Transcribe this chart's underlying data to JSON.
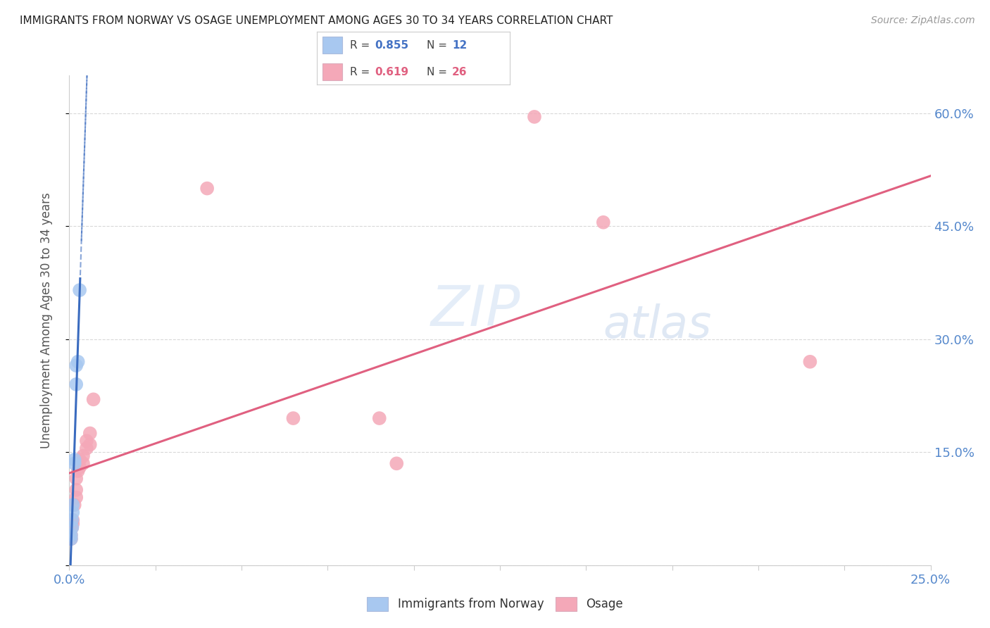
{
  "title": "IMMIGRANTS FROM NORWAY VS OSAGE UNEMPLOYMENT AMONG AGES 30 TO 34 YEARS CORRELATION CHART",
  "source": "Source: ZipAtlas.com",
  "ylabel": "Unemployment Among Ages 30 to 34 years",
  "xlim": [
    0.0,
    0.25
  ],
  "ylim": [
    0.0,
    0.65
  ],
  "xticks": [
    0.0,
    0.025,
    0.05,
    0.075,
    0.1,
    0.125,
    0.15,
    0.175,
    0.2,
    0.225,
    0.25
  ],
  "yticks_right": [
    0.0,
    0.15,
    0.3,
    0.45,
    0.6
  ],
  "norway_points": [
    [
      0.0005,
      0.035
    ],
    [
      0.0005,
      0.04
    ],
    [
      0.0008,
      0.05
    ],
    [
      0.0008,
      0.06
    ],
    [
      0.001,
      0.07
    ],
    [
      0.001,
      0.08
    ],
    [
      0.0015,
      0.135
    ],
    [
      0.0015,
      0.14
    ],
    [
      0.002,
      0.24
    ],
    [
      0.002,
      0.265
    ],
    [
      0.0025,
      0.27
    ],
    [
      0.003,
      0.365
    ]
  ],
  "osage_points": [
    [
      0.0005,
      0.035
    ],
    [
      0.0005,
      0.04
    ],
    [
      0.0008,
      0.05
    ],
    [
      0.001,
      0.055
    ],
    [
      0.001,
      0.06
    ],
    [
      0.0015,
      0.08
    ],
    [
      0.002,
      0.09
    ],
    [
      0.002,
      0.1
    ],
    [
      0.002,
      0.115
    ],
    [
      0.0025,
      0.125
    ],
    [
      0.003,
      0.13
    ],
    [
      0.003,
      0.14
    ],
    [
      0.004,
      0.135
    ],
    [
      0.004,
      0.145
    ],
    [
      0.005,
      0.155
    ],
    [
      0.005,
      0.165
    ],
    [
      0.006,
      0.16
    ],
    [
      0.006,
      0.175
    ],
    [
      0.007,
      0.22
    ],
    [
      0.04,
      0.5
    ],
    [
      0.065,
      0.195
    ],
    [
      0.09,
      0.195
    ],
    [
      0.095,
      0.135
    ],
    [
      0.135,
      0.595
    ],
    [
      0.155,
      0.455
    ],
    [
      0.215,
      0.27
    ]
  ],
  "norway_color": "#a8c8f0",
  "osage_color": "#f4a8b8",
  "norway_line_color": "#3a6bbf",
  "osage_line_color": "#e06080",
  "legend_norway_R": "0.855",
  "legend_norway_N": "12",
  "legend_osage_R": "0.619",
  "legend_osage_N": "26",
  "watermark_zip": "ZIP",
  "watermark_atlas": "atlas",
  "background_color": "#ffffff",
  "grid_color": "#d8d8d8"
}
